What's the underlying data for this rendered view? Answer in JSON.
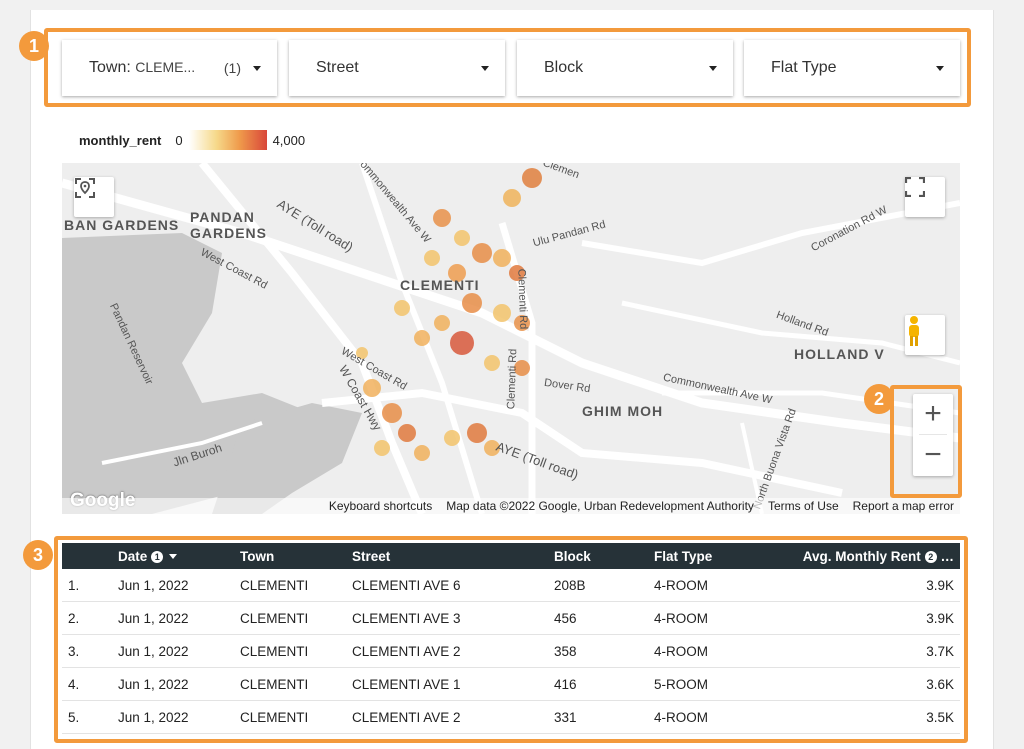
{
  "filters": [
    {
      "label": "Town",
      "value": "CLEME...",
      "count": "(1)"
    },
    {
      "label": "Street"
    },
    {
      "label": "Block"
    },
    {
      "label": "Flat Type"
    }
  ],
  "legend": {
    "title": "monthly_rent",
    "min": "0",
    "max": "4,000"
  },
  "map": {
    "areas": [
      "BAN GARDENS",
      "PANDAN GARDENS",
      "CLEMENTI",
      "HOLLAND V",
      "GHIM MOH"
    ],
    "roads": [
      "AYE (Toll road)",
      "Commonwealth Ave W",
      "West Coast Rd",
      "Ulu Pandan Rd",
      "Clementi Rd",
      "Coronation Rd W",
      "Holland Rd",
      "Pandan Reservoir",
      "Dover Rd",
      "West Coast Rd",
      "W Coast Hwy",
      "Jln Buroh",
      "AYE (Toll road)",
      "Commonwealth Ave W",
      "North Buona Vista Rd",
      "Clementi Rd",
      "Clemen"
    ],
    "attribution": {
      "logo": "Google",
      "shortcuts": "Keyboard shortcuts",
      "data": "Map data ©2022 Google, Urban Redevelopment Authority",
      "terms": "Terms of Use",
      "report": "Report a map error"
    },
    "zoom_in": "+",
    "zoom_out": "−"
  },
  "callouts": [
    "1",
    "2",
    "3"
  ],
  "table": {
    "headers": {
      "date": "Date",
      "town": "Town",
      "street": "Street",
      "block": "Block",
      "flat_type": "Flat Type",
      "rent": "Avg. Monthly Rent",
      "date_info": "1",
      "rent_info": "2"
    },
    "rows": [
      {
        "idx": "1.",
        "date": "Jun 1, 2022",
        "town": "CLEMENTI",
        "street": "CLEMENTI AVE 6",
        "block": "208B",
        "flat_type": "4-ROOM",
        "rent": "3.9K"
      },
      {
        "idx": "2.",
        "date": "Jun 1, 2022",
        "town": "CLEMENTI",
        "street": "CLEMENTI AVE 3",
        "block": "456",
        "flat_type": "4-ROOM",
        "rent": "3.9K"
      },
      {
        "idx": "3.",
        "date": "Jun 1, 2022",
        "town": "CLEMENTI",
        "street": "CLEMENTI AVE 2",
        "block": "358",
        "flat_type": "4-ROOM",
        "rent": "3.7K"
      },
      {
        "idx": "4.",
        "date": "Jun 1, 2022",
        "town": "CLEMENTI",
        "street": "CLEMENTI AVE 1",
        "block": "416",
        "flat_type": "5-ROOM",
        "rent": "3.6K"
      },
      {
        "idx": "5.",
        "date": "Jun 1, 2022",
        "town": "CLEMENTI",
        "street": "CLEMENTI AVE 2",
        "block": "331",
        "flat_type": "4-ROOM",
        "rent": "3.5K"
      }
    ]
  },
  "colors": {
    "accent": "#f39a3c",
    "header_bg": "#263238"
  }
}
